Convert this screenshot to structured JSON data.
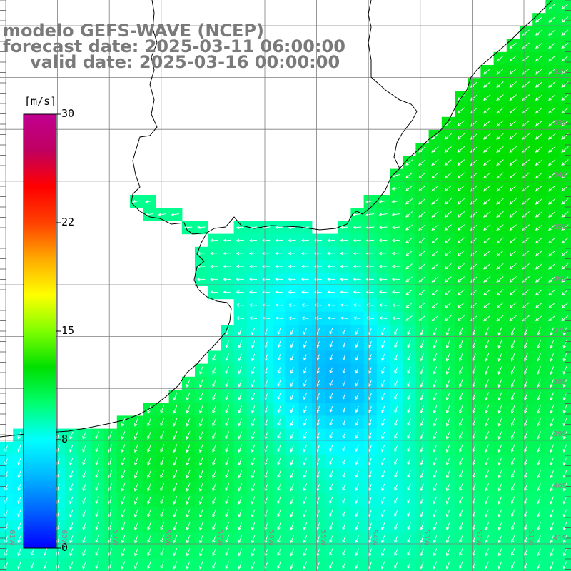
{
  "title": {
    "line1": "modelo GEFS-WAVE (NCEP)",
    "line2": "forecast date: 2025-03-11 06:00:00",
    "line3": "valid date: 2025-03-16 00:00:00"
  },
  "colorbar": {
    "unit": "[m/s]",
    "ticks": [
      "30",
      "22",
      "15",
      "8",
      "0"
    ],
    "tick_values": [
      30,
      22,
      15,
      8,
      0
    ],
    "min": 0,
    "max": 30,
    "colors": [
      "#0000ff",
      "#0060ff",
      "#00b8ff",
      "#00ffff",
      "#00ff70",
      "#00e000",
      "#7fff00",
      "#ffff00",
      "#ffaa00",
      "#ff4000",
      "#ff0000",
      "#c00060",
      "#c00090"
    ]
  },
  "latitude_labels": [
    "32S",
    "33S",
    "34S",
    "35S",
    "36S",
    "37S",
    "38S",
    "39S",
    "40S",
    "41S"
  ],
  "longitude_labels": [
    "61W",
    "60W",
    "59W",
    "58W",
    "57W",
    "56W",
    "55W",
    "54W",
    "53W",
    "52W",
    "51W"
  ],
  "field": {
    "variable": "wind speed",
    "grid_step_deg": 0.25,
    "lat_range": [
      -41.5,
      -31.5
    ],
    "lon_range": [
      -61.5,
      -51.0
    ]
  },
  "land_color": "#ffffff",
  "coast_color": "#000000",
  "grid_color": "#7f7f7f",
  "arrow_color": "#ffffff",
  "text_color": "#7a7a7a"
}
